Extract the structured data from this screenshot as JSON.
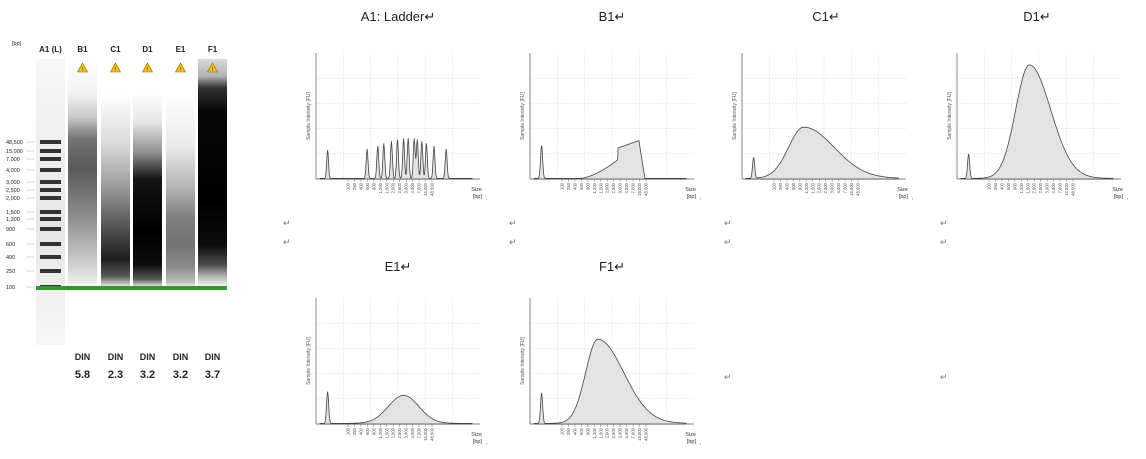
{
  "gel": {
    "unit_label": "[bp]",
    "ladder_labels": [
      "48,500",
      "15,000",
      "7,000",
      "4,000",
      "3,000",
      "2,500",
      "2,000",
      "1,500",
      "1,200",
      "900",
      "600",
      "400",
      "250",
      "100"
    ],
    "lanes": [
      {
        "id": "A1 (L)",
        "kind": "ladder"
      },
      {
        "id": "B1",
        "warning": true,
        "din_label": "DIN",
        "din": "5.8"
      },
      {
        "id": "C1",
        "warning": true,
        "din_label": "DIN",
        "din": "2.3"
      },
      {
        "id": "D1",
        "warning": true,
        "din_label": "DIN",
        "din": "3.2"
      },
      {
        "id": "E1",
        "warning": true,
        "din_label": "DIN",
        "din": "3.2"
      },
      {
        "id": "F1",
        "warning": true,
        "din_label": "DIN",
        "din": "3.7"
      }
    ],
    "colors": {
      "marker": "#2e9a2e",
      "warning": "#f2c200",
      "band": "#000000"
    }
  },
  "paragraph_mark": "↵",
  "chart_data": [
    {
      "type": "area",
      "title": "A1: Ladder↵",
      "ylabel": "Sample Intensity [FU]",
      "xlabel": "Size [bp]",
      "x_ticks": [
        "100",
        "250",
        "400",
        "600",
        "900",
        "1,200",
        "1,500",
        "2,000",
        "2,500",
        "3,000",
        "4,000",
        "7,000",
        "15,000",
        "48,500"
      ],
      "profile": "ladder",
      "peaks": [
        0.05,
        0.31,
        0.38,
        0.42,
        0.47,
        0.51,
        0.55,
        0.58,
        0.62,
        0.64,
        0.67,
        0.7,
        0.75,
        0.83
      ],
      "relative_height": 0.33
    },
    {
      "type": "area",
      "title": "B1↵",
      "ylabel": "Sample Intensity [FU]",
      "xlabel": "Size [bp]",
      "x_ticks": [
        "100",
        "250",
        "400",
        "600",
        "900",
        "1,200",
        "1,500",
        "2,000",
        "2,500",
        "3,000",
        "4,000",
        "7,000",
        "15,000",
        "48,500"
      ],
      "profile": "sample",
      "marker_height": 0.27,
      "peak_position": 0.69,
      "peak_height": 0.31,
      "shape": "b1"
    },
    {
      "type": "area",
      "title": "C1↵",
      "ylabel": "Sample Intensity [FU]",
      "xlabel": "Size [bp]",
      "x_ticks": [
        "100",
        "250",
        "400",
        "600",
        "900",
        "1,200",
        "1,500",
        "2,000",
        "2,500",
        "3,000",
        "4,000",
        "7,000",
        "15,000",
        "48,500"
      ],
      "profile": "sample",
      "marker_height": 0.17,
      "peak_position": 0.38,
      "peak_height": 0.42,
      "shape": "c1"
    },
    {
      "type": "area",
      "title": "D1↵",
      "ylabel": "Sample Intensity [FU]",
      "xlabel": "Size [bp]",
      "x_ticks": [
        "100",
        "250",
        "400",
        "600",
        "900",
        "1,200",
        "1,500",
        "2,000",
        "2,500",
        "3,000",
        "4,000",
        "7,000",
        "15,000",
        "48,500"
      ],
      "profile": "sample",
      "marker_height": 0.2,
      "peak_position": 0.45,
      "peak_height": 0.93,
      "shape": "d1"
    },
    {
      "type": "area",
      "title": "E1↵",
      "ylabel": "Sample Intensity [FU]",
      "xlabel": "Size [bp]",
      "x_ticks": [
        "100",
        "250",
        "400",
        "600",
        "900",
        "1,200",
        "1,500",
        "2,000",
        "2,500",
        "3,000",
        "4,000",
        "7,000",
        "15,000",
        "48,500"
      ],
      "profile": "sample",
      "marker_height": 0.26,
      "peak_position": 0.55,
      "peak_height": 0.23,
      "shape": "e1"
    },
    {
      "type": "area",
      "title": "F1↵",
      "ylabel": "Sample Intensity [FU]",
      "xlabel": "Size [bp]",
      "x_ticks": [
        "100",
        "250",
        "400",
        "600",
        "900",
        "1,200",
        "1,500",
        "2,000",
        "2,500",
        "3,000",
        "4,000",
        "7,000",
        "15,000",
        "48,500"
      ],
      "profile": "sample",
      "marker_height": 0.25,
      "peak_position": 0.42,
      "peak_height": 0.69,
      "shape": "f1"
    }
  ]
}
